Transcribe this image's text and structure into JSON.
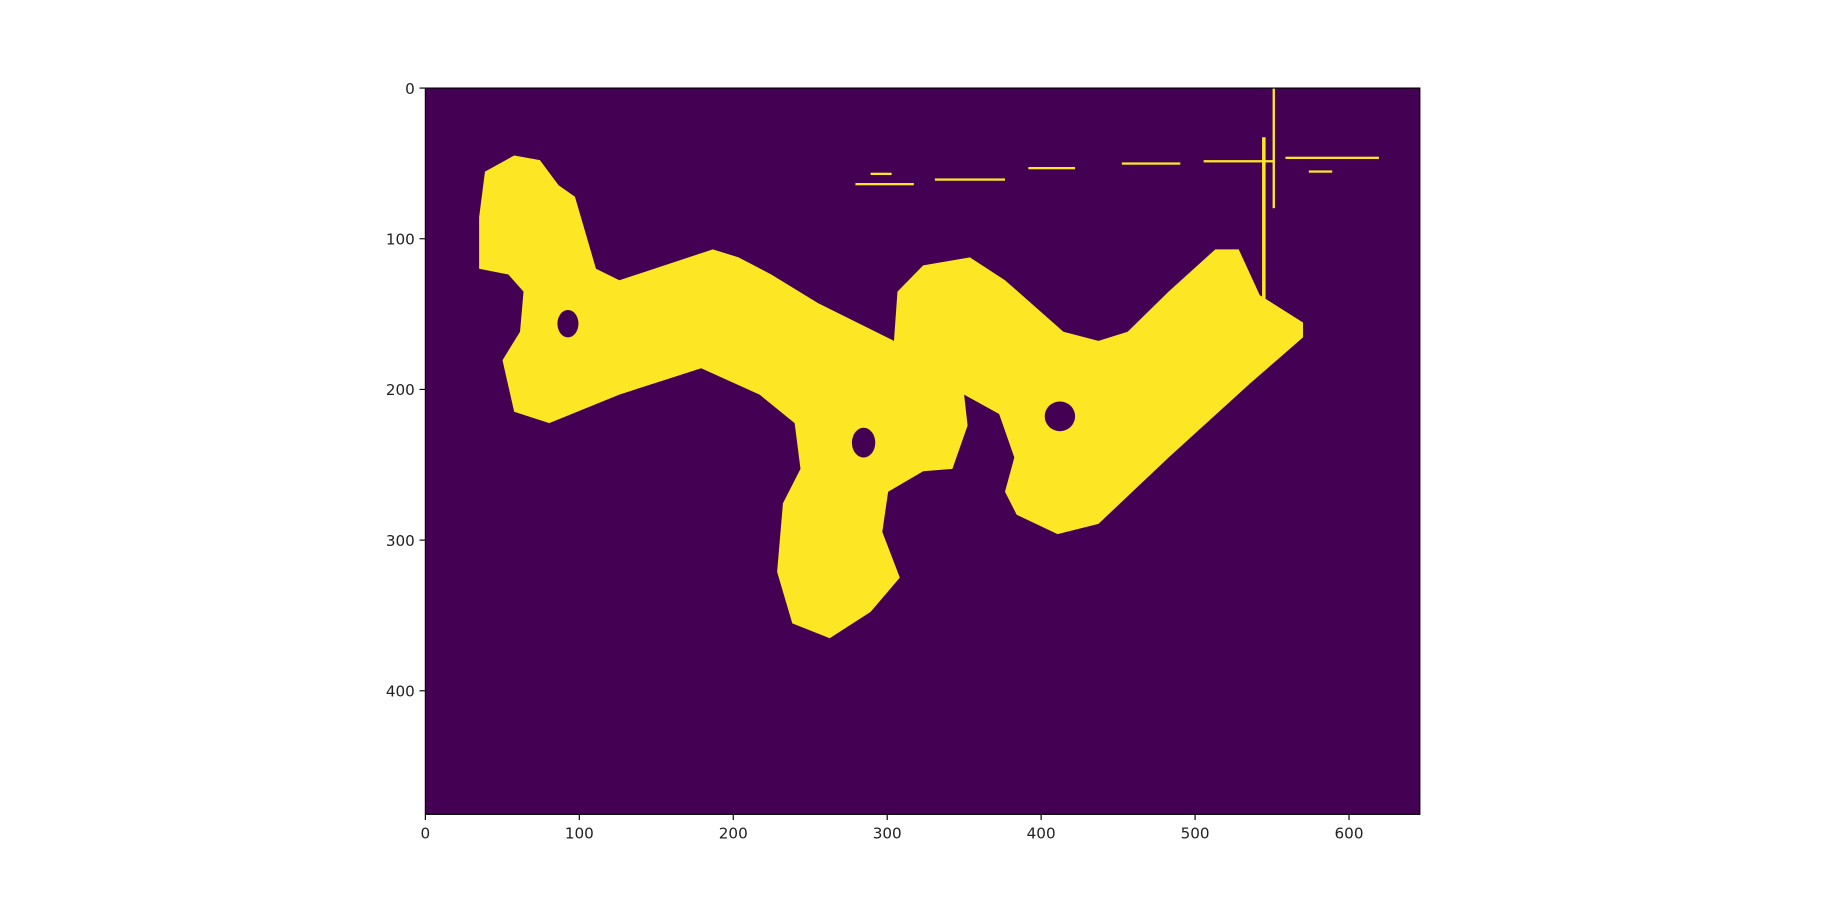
{
  "chart_data": {
    "type": "image",
    "xlim": [
      0,
      646
    ],
    "ylim": [
      482,
      0
    ],
    "xticks": [
      0,
      100,
      200,
      300,
      400,
      500,
      600
    ],
    "yticks": [
      0,
      100,
      200,
      300,
      400
    ]
  }
}
